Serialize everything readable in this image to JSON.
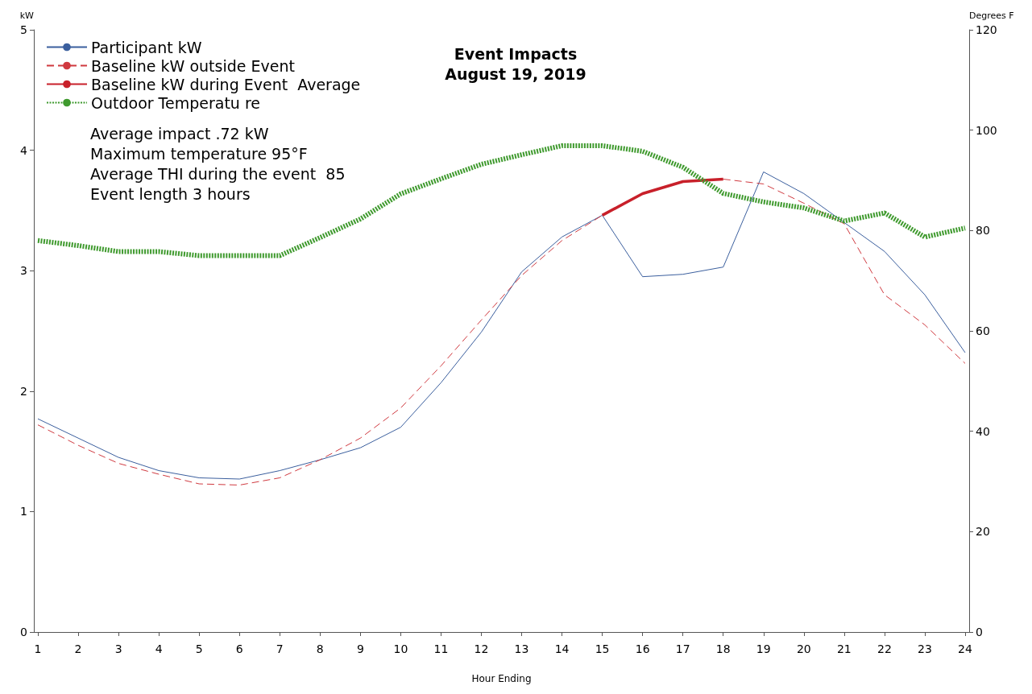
{
  "chart_data": {
    "type": "line",
    "title": "Event Impacts",
    "subtitle": "August 19, 2019",
    "xlabel": "Hour Ending",
    "ylabel": "kW",
    "y2label": "Degrees F",
    "x": [
      1,
      2,
      3,
      4,
      5,
      6,
      7,
      8,
      9,
      10,
      11,
      12,
      13,
      14,
      15,
      16,
      17,
      18,
      19,
      20,
      21,
      22,
      23,
      24
    ],
    "series": [
      {
        "name": "Participant kW",
        "color": "#3b5f9e",
        "line_style": "solid",
        "values": [
          1.77,
          1.61,
          1.45,
          1.34,
          1.28,
          1.27,
          1.34,
          1.43,
          1.53,
          1.7,
          2.07,
          2.49,
          2.99,
          3.28,
          3.46,
          2.95,
          2.97,
          3.03,
          3.82,
          3.64,
          3.4,
          3.16,
          2.8,
          2.32
        ]
      },
      {
        "name": "Baseline kW outside Event",
        "color": "#d0393f",
        "line_style": "dashed",
        "values": [
          1.72,
          1.55,
          1.4,
          1.31,
          1.23,
          1.22,
          1.28,
          1.43,
          1.61,
          1.86,
          2.21,
          2.59,
          2.96,
          3.25,
          3.46,
          null,
          null,
          3.76,
          3.72,
          3.56,
          3.39,
          2.8,
          2.55,
          2.23
        ]
      },
      {
        "name": "Baseline kW during Event  Average",
        "color": "#c8202a",
        "line_style": "solid",
        "values": [
          null,
          null,
          null,
          null,
          null,
          null,
          null,
          null,
          null,
          null,
          null,
          null,
          null,
          null,
          3.46,
          3.64,
          3.74,
          3.76,
          null,
          null,
          null,
          null,
          null,
          null
        ]
      },
      {
        "name": "Outdoor Temperatu re",
        "color": "#3f9a2e",
        "line_style": "dotted",
        "axis": "y2",
        "values": [
          78.0,
          77.0,
          75.8,
          75.8,
          75.0,
          75.0,
          75.0,
          78.6,
          82.3,
          87.3,
          90.3,
          93.2,
          95.1,
          96.9,
          96.9,
          95.8,
          92.6,
          87.4,
          85.7,
          84.5,
          81.9,
          83.5,
          78.7,
          80.5
        ]
      }
    ],
    "annotations": [
      "Average impact .72 kW",
      "Maximum temperature 95°F",
      "Average THI during the event  85",
      "Event length 3 hours"
    ],
    "xlim": [
      0.9,
      24.1
    ],
    "xticks": [
      1,
      2,
      3,
      4,
      5,
      6,
      7,
      8,
      9,
      10,
      11,
      12,
      13,
      14,
      15,
      16,
      17,
      18,
      19,
      20,
      21,
      22,
      23,
      24
    ],
    "ylim": [
      0,
      5
    ],
    "yticks": [
      0,
      1,
      2,
      3,
      4,
      5
    ],
    "y2lim": [
      0,
      120
    ],
    "y2ticks": [
      0,
      20,
      40,
      60,
      80,
      100,
      120
    ],
    "grid": false,
    "legend": "top left",
    "marker": "none"
  }
}
